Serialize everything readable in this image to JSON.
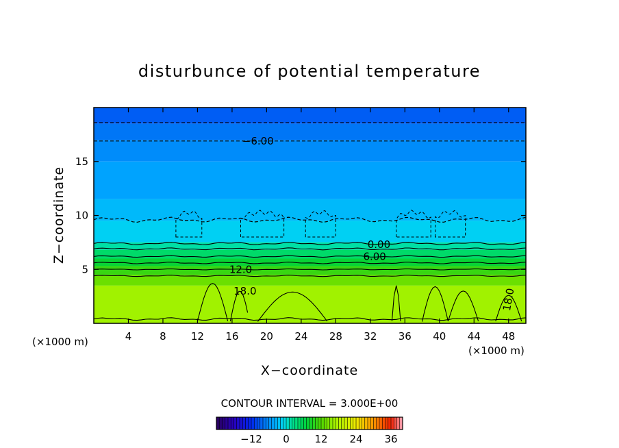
{
  "chart_data": {
    "type": "heatmap",
    "title": "disturbunce of potential temperature",
    "xlabel": "X−coordinate",
    "ylabel": "Z−coordinate",
    "x_units": "(×1000 m)",
    "y_units": "(×1000 m)",
    "xlim": [
      0,
      50
    ],
    "ylim": [
      0,
      20
    ],
    "x_ticks": [
      4,
      8,
      12,
      16,
      20,
      24,
      28,
      32,
      36,
      40,
      44,
      48
    ],
    "y_ticks": [
      5,
      10,
      15
    ],
    "grid": false,
    "contour_interval_text": "CONTOUR INTERVAL = 3.000E+00",
    "contour_labels": [
      {
        "text": "−6.00",
        "x": 19.0,
        "z": 16.9
      },
      {
        "text": "0.00",
        "x": 33.0,
        "z": 7.3
      },
      {
        "text": "6.00",
        "x": 32.5,
        "z": 6.2
      },
      {
        "text": "12.0",
        "x": 17.0,
        "z": 5.0
      },
      {
        "text": "18.0",
        "x": 17.5,
        "z": 3.0
      },
      {
        "text": "18.0",
        "x": 48.0,
        "z": 2.2
      }
    ],
    "colorbar": {
      "min": -24,
      "max": 40,
      "ticks": [
        -12,
        0,
        12,
        24,
        36
      ],
      "tick_labels": [
        "−12",
        "0",
        "12",
        "24",
        "36"
      ]
    },
    "field_bands": [
      {
        "z_top": 20.0,
        "z_bottom": 18.5,
        "value": -9
      },
      {
        "z_top": 18.5,
        "z_bottom": 17.0,
        "value": -7.5
      },
      {
        "z_top": 17.0,
        "z_bottom": 15.0,
        "value": -6
      },
      {
        "z_top": 15.0,
        "z_bottom": 11.5,
        "value": -4.5
      },
      {
        "z_top": 11.5,
        "z_bottom": 9.5,
        "value": -3
      },
      {
        "z_top": 9.5,
        "z_bottom": 7.5,
        "value": -1.5
      },
      {
        "z_top": 7.5,
        "z_bottom": 6.8,
        "value": 1.5
      },
      {
        "z_top": 6.8,
        "z_bottom": 6.0,
        "value": 4.5
      },
      {
        "z_top": 6.0,
        "z_bottom": 5.3,
        "value": 7.5
      },
      {
        "z_top": 5.3,
        "z_bottom": 4.5,
        "value": 10.5
      },
      {
        "z_top": 4.5,
        "z_bottom": 3.5,
        "value": 13.5
      },
      {
        "z_top": 3.5,
        "z_bottom": 0.0,
        "value": 16.5
      }
    ]
  }
}
